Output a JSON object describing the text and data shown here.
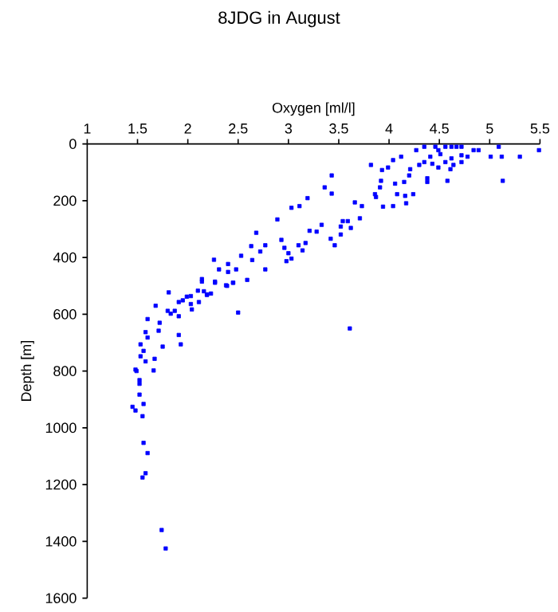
{
  "chart_data": {
    "type": "scatter",
    "title": "8JDG in August",
    "xlabel": "Oxygen [ml/l]",
    "ylabel": "Depth [m]",
    "xlim": [
      1,
      5.5
    ],
    "xticks": [
      1,
      1.5,
      2,
      2.5,
      3,
      3.5,
      4,
      4.5,
      5,
      5.5
    ],
    "ylim": [
      1600,
      0
    ],
    "yticks": [
      0,
      200,
      400,
      600,
      800,
      1000,
      1200,
      1400,
      1600
    ],
    "marker": "square",
    "grid": false,
    "series": [
      {
        "color": "#0000ff",
        "x": [
          4.35,
          4.46,
          4.56,
          4.62,
          4.67,
          4.72,
          5.09,
          4.27,
          4.49,
          4.84,
          4.89,
          5.49,
          5.01,
          5.12,
          5.3,
          3.82,
          4.04,
          4.12,
          3.99,
          4.21,
          4.3,
          4.35,
          4.43,
          4.49,
          4.56,
          4.64,
          4.72,
          4.72,
          4.78,
          4.41,
          4.51,
          4.62,
          4.61,
          4.38,
          4.38,
          4.58,
          5.13,
          3.93,
          3.92,
          3.91,
          4.06,
          4.15,
          4.2,
          4.08,
          4.16,
          4.24,
          4.17,
          4.04,
          3.94,
          3.86,
          3.87,
          3.73,
          3.66,
          3.71,
          3.62,
          3.59,
          3.54,
          3.52,
          3.43,
          3.36,
          3.43,
          3.19,
          3.11,
          3.03,
          3.42,
          3.33,
          3.28,
          3.21,
          3.17,
          3.14,
          3.1,
          3.03,
          2.98,
          2.93,
          2.96,
          3.0,
          3.52,
          3.46,
          2.89,
          2.68,
          2.77,
          2.72,
          2.77,
          2.64,
          2.53,
          2.63,
          2.59,
          2.48,
          2.4,
          2.31,
          2.26,
          2.4,
          2.27,
          2.45,
          2.38,
          2.14,
          2.1,
          2.19,
          2.03,
          1.95,
          1.81,
          1.68,
          1.8,
          1.83,
          1.87,
          1.91,
          1.91,
          1.99,
          2.03,
          2.04,
          2.11,
          2.16,
          2.19,
          2.23,
          2.14,
          2.27,
          2.39,
          2.45,
          2.5,
          3.61,
          1.6,
          1.72,
          1.71,
          1.6,
          1.58,
          1.75,
          1.91,
          1.93,
          1.53,
          1.56,
          1.53,
          1.67,
          1.58,
          1.66,
          1.48,
          1.49,
          1.52,
          1.52,
          1.52,
          1.56,
          1.45,
          1.48,
          1.55,
          1.56,
          1.6,
          1.58,
          1.55,
          1.74,
          1.78
        ],
        "values": [
          10,
          10,
          10,
          10,
          10,
          10,
          10,
          22,
          22,
          22,
          22,
          22,
          45,
          45,
          45,
          74,
          57,
          45,
          83,
          89,
          74,
          64,
          70,
          83,
          64,
          74,
          64,
          40,
          45,
          45,
          36,
          51,
          89,
          121,
          134,
          130,
          130,
          92,
          130,
          153,
          140,
          134,
          111,
          177,
          183,
          177,
          209,
          219,
          221,
          177,
          187,
          219,
          206,
          262,
          296,
          272,
          272,
          291,
          111,
          153,
          175,
          191,
          219,
          225,
          334,
          285,
          309,
          306,
          349,
          375,
          357,
          404,
          413,
          338,
          366,
          385,
          319,
          357,
          266,
          313,
          357,
          379,
          442,
          409,
          394,
          360,
          479,
          442,
          423,
          442,
          408,
          451,
          489,
          489,
          498,
          485,
          517,
          530,
          536,
          551,
          523,
          570,
          588,
          598,
          588,
          557,
          607,
          538,
          564,
          583,
          557,
          519,
          532,
          527,
          476,
          485,
          500,
          489,
          594,
          650,
          617,
          630,
          658,
          682,
          663,
          714,
          673,
          706,
          706,
          729,
          748,
          757,
          766,
          798,
          795,
          800,
          832,
          845,
          883,
          916,
          926,
          939,
          959,
          1053,
          1089,
          1160,
          1175,
          1360,
          1425
        ]
      }
    ]
  }
}
